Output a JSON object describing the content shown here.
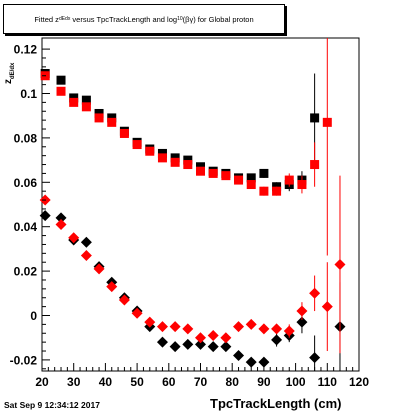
{
  "plot": {
    "title": "Fitted z_dEdx versus TpcTrackLength and log10(βγ) for Global proton",
    "footer_date": "Sat Sep  9 12:34:12 2017"
  },
  "chart_data": {
    "type": "scatter",
    "title": "Fitted z_dEdx versus TpcTrackLength and log10(βγ) for Global proton",
    "xlabel": "TpcTrackLength (cm)",
    "ylabel": "z_dEdx",
    "xlim": [
      20,
      120
    ],
    "ylim": [
      -0.025,
      0.125
    ],
    "x_ticks": [
      20,
      30,
      40,
      50,
      60,
      70,
      80,
      90,
      100,
      110,
      120
    ],
    "y_ticks": [
      -0.02,
      0,
      0.02,
      0.04,
      0.06,
      0.08,
      0.1,
      0.12
    ],
    "y_tick_labels": [
      "-0.02",
      "0",
      "0.02",
      "0.04",
      "0.06",
      "0.08",
      "0.1",
      "0.12"
    ],
    "colors": {
      "black": "#000000",
      "red": "#ff0000"
    },
    "series": [
      {
        "color": "#000000",
        "marker": "square",
        "x": [
          21,
          26,
          30,
          34,
          38,
          42,
          46,
          50,
          54,
          58,
          62,
          66,
          70,
          74,
          78,
          82,
          86,
          90,
          94,
          98,
          102,
          106
        ],
        "y": [
          0.109,
          0.106,
          0.098,
          0.097,
          0.091,
          0.089,
          0.083,
          0.078,
          0.075,
          0.073,
          0.071,
          0.07,
          0.067,
          0.065,
          0.064,
          0.062,
          0.062,
          0.064,
          0.058,
          0.059,
          0.061,
          0.089
        ],
        "yerr": [
          0.001,
          0.001,
          0.001,
          0.001,
          0.001,
          0.001,
          0.001,
          0.001,
          0.001,
          0.001,
          0.001,
          0.001,
          0.001,
          0.001,
          0.001,
          0.001,
          0.001,
          0.002,
          0.002,
          0.003,
          0.004,
          0.02
        ]
      },
      {
        "color": "#ff0000",
        "marker": "square",
        "x": [
          21,
          26,
          30,
          34,
          38,
          42,
          46,
          50,
          54,
          58,
          62,
          66,
          70,
          74,
          78,
          82,
          86,
          90,
          94,
          98,
          102,
          106,
          110
        ],
        "y": [
          0.108,
          0.101,
          0.096,
          0.094,
          0.089,
          0.087,
          0.082,
          0.077,
          0.074,
          0.071,
          0.069,
          0.068,
          0.065,
          0.064,
          0.063,
          0.061,
          0.059,
          0.056,
          0.056,
          0.061,
          0.059,
          0.068,
          0.087
        ],
        "yerr": [
          0.001,
          0.001,
          0.001,
          0.001,
          0.001,
          0.001,
          0.001,
          0.001,
          0.001,
          0.001,
          0.001,
          0.001,
          0.001,
          0.001,
          0.001,
          0.001,
          0.001,
          0.002,
          0.002,
          0.003,
          0.004,
          0.01,
          0.06
        ]
      },
      {
        "color": "#000000",
        "marker": "diamond",
        "x": [
          21,
          26,
          30,
          34,
          38,
          42,
          46,
          50,
          54,
          58,
          62,
          66,
          70,
          74,
          78,
          82,
          86,
          90,
          94,
          98,
          102,
          106,
          114
        ],
        "y": [
          0.045,
          0.044,
          0.034,
          0.033,
          0.022,
          0.015,
          0.008,
          0.002,
          -0.005,
          -0.012,
          -0.014,
          -0.013,
          -0.013,
          -0.014,
          -0.014,
          -0.018,
          -0.021,
          -0.021,
          -0.011,
          -0.009,
          -0.003,
          -0.019,
          -0.005
        ],
        "yerr": [
          0.001,
          0.001,
          0.001,
          0.001,
          0.001,
          0.001,
          0.001,
          0.001,
          0.001,
          0.001,
          0.001,
          0.001,
          0.001,
          0.001,
          0.001,
          0.001,
          0.002,
          0.002,
          0.003,
          0.003,
          0.005,
          0.01,
          0.02
        ]
      },
      {
        "color": "#ff0000",
        "marker": "diamond",
        "x": [
          21,
          26,
          30,
          34,
          38,
          42,
          46,
          50,
          54,
          58,
          62,
          66,
          70,
          74,
          78,
          82,
          86,
          90,
          94,
          98,
          102,
          106,
          110,
          114
        ],
        "y": [
          0.052,
          0.041,
          0.035,
          0.027,
          0.021,
          0.013,
          0.007,
          0.001,
          -0.003,
          -0.005,
          -0.005,
          -0.006,
          -0.01,
          -0.009,
          -0.01,
          -0.005,
          -0.004,
          -0.006,
          -0.006,
          -0.007,
          0.002,
          0.01,
          0.004,
          0.023
        ],
        "yerr": [
          0.001,
          0.001,
          0.001,
          0.001,
          0.001,
          0.001,
          0.001,
          0.001,
          0.001,
          0.001,
          0.001,
          0.001,
          0.001,
          0.001,
          0.001,
          0.001,
          0.001,
          0.002,
          0.002,
          0.003,
          0.004,
          0.008,
          0.02,
          0.04
        ]
      }
    ]
  }
}
